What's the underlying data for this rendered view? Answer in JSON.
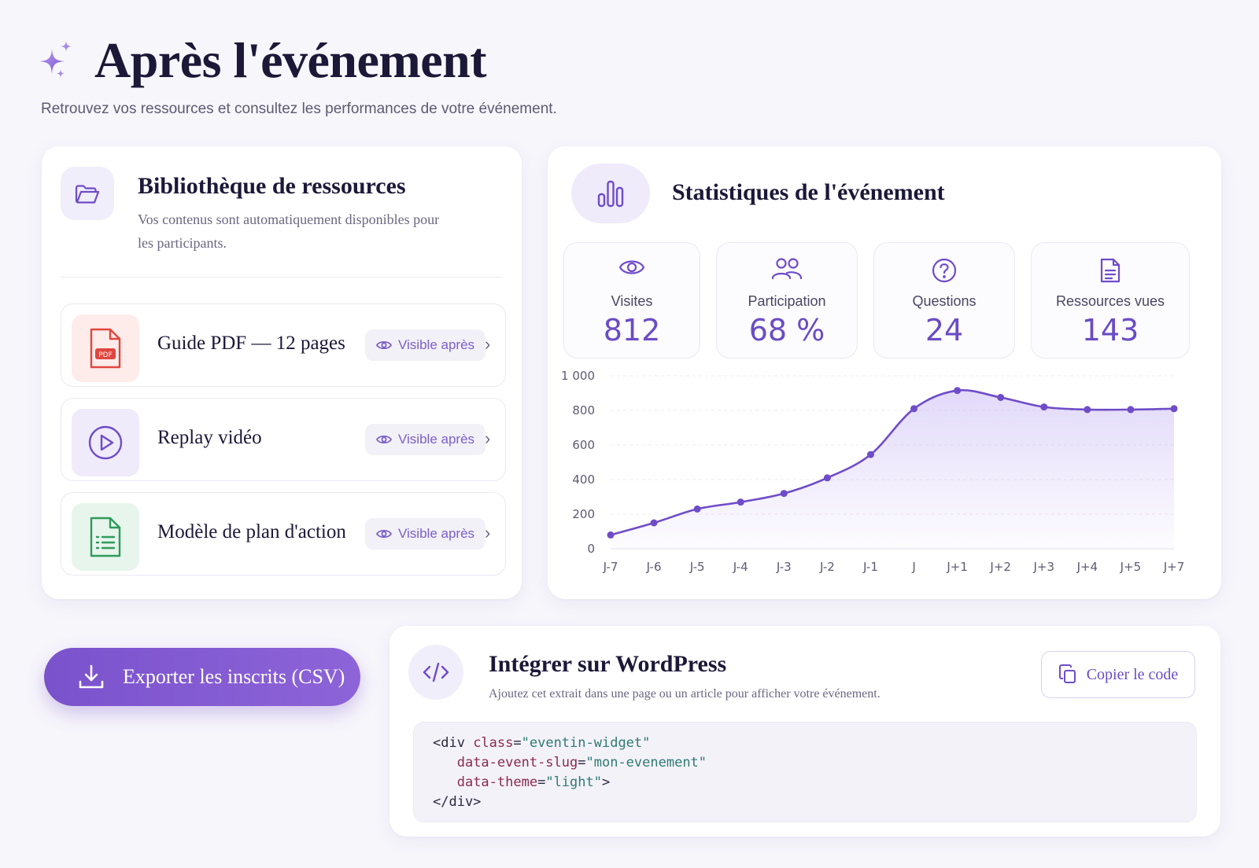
{
  "header": {
    "title": "Après l'événement",
    "subtitle": "Retrouvez vos ressources et consultez les performances de votre événement."
  },
  "library": {
    "title": "Bibliothèque de ressources",
    "description": "Vos contenus sont automatiquement disponibles pour les participants.",
    "items": [
      {
        "name": "Guide PDF — 12 pages",
        "badge": "Visible après",
        "icon": "pdf-file-icon",
        "thumb_color": "#fdecea"
      },
      {
        "name": "Replay vidéo",
        "badge": "Visible après",
        "icon": "play-circle-icon",
        "thumb_color": "#efebfb"
      },
      {
        "name": "Modèle de plan d'action",
        "badge": "Visible après",
        "icon": "spreadsheet-file-icon",
        "thumb_color": "#e7f5ec"
      }
    ]
  },
  "stats": {
    "title": "Statistiques de l'événement",
    "kpis": [
      {
        "label": "Visites",
        "value": "812",
        "icon": "eye-icon"
      },
      {
        "label": "Participation",
        "value": "68 %",
        "icon": "users-icon"
      },
      {
        "label": "Questions",
        "value": "24",
        "icon": "question-circle-icon"
      },
      {
        "label": "Ressources vues",
        "value": "143",
        "icon": "document-icon"
      }
    ]
  },
  "chart_data": {
    "type": "area",
    "categories": [
      "J-7",
      "J-6",
      "J-5",
      "J-4",
      "J-3",
      "J-2",
      "J-1",
      "J",
      "J+1",
      "J+2",
      "J+3",
      "J+4",
      "J+5",
      "J+7"
    ],
    "values": [
      80,
      150,
      230,
      270,
      320,
      410,
      545,
      810,
      915,
      875,
      820,
      805,
      805,
      810
    ],
    "y_ticks": [
      "0",
      "200",
      "400",
      "600",
      "800",
      "1 000"
    ],
    "ylim": [
      0,
      1000
    ],
    "grid": true,
    "line_color": "#6f4cc8"
  },
  "export": {
    "label": "Exporter les inscrits (CSV)"
  },
  "wordpress": {
    "title": "Intégrer sur WordPress",
    "description": "Ajoutez cet extrait dans une page ou un article pour afficher votre événement.",
    "copy_label": "Copier le code",
    "code": {
      "l1_open": "<div ",
      "l1_attr": "class",
      "l1_eq": "=",
      "l1_val": "\"eventin-widget\"",
      "l2_attr": "data-event-slug",
      "l2_eq": "=",
      "l2_val": "\"mon-evenement\"",
      "l3_attr": "data-theme",
      "l3_eq": "=",
      "l3_val": "\"light\"",
      "l3_close": ">",
      "l4": "</div>"
    }
  },
  "colors": {
    "accent": "#6f4cc8",
    "background": "#f7f6fb"
  }
}
